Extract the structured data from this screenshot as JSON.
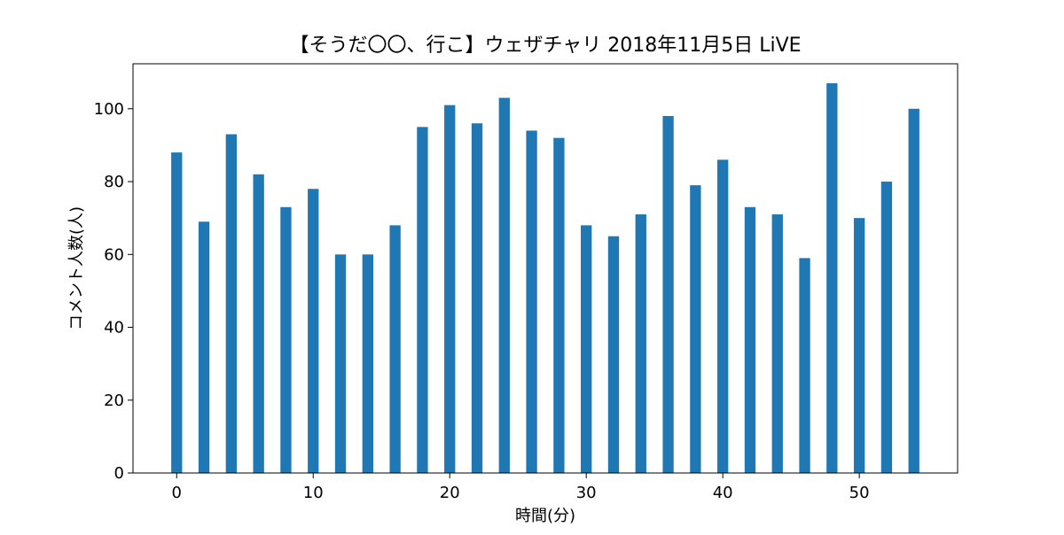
{
  "chart_data": {
    "type": "bar",
    "title": "【そうだ〇〇、行こ】ウェザチャリ 2018年11月5日 LiVE",
    "xlabel": "時間(分)",
    "ylabel": "コメント人数(人)",
    "x": [
      0,
      2,
      4,
      6,
      8,
      10,
      12,
      14,
      16,
      18,
      20,
      22,
      24,
      26,
      28,
      30,
      32,
      34,
      36,
      38,
      40,
      42,
      44,
      46,
      48,
      50,
      52,
      54
    ],
    "values": [
      88,
      69,
      93,
      82,
      73,
      78,
      60,
      60,
      68,
      95,
      101,
      96,
      103,
      94,
      92,
      68,
      65,
      71,
      98,
      79,
      86,
      73,
      71,
      59,
      107,
      70,
      80,
      100
    ],
    "xlim": [
      -3.2,
      57.2
    ],
    "ylim": [
      0,
      112.35
    ],
    "xticks": [
      0,
      10,
      20,
      30,
      40,
      50
    ],
    "yticks": [
      0,
      20,
      40,
      60,
      80,
      100
    ],
    "bar_width_units": 0.8,
    "bar_color": "#1f77b4",
    "grid": false,
    "legend": "none"
  }
}
